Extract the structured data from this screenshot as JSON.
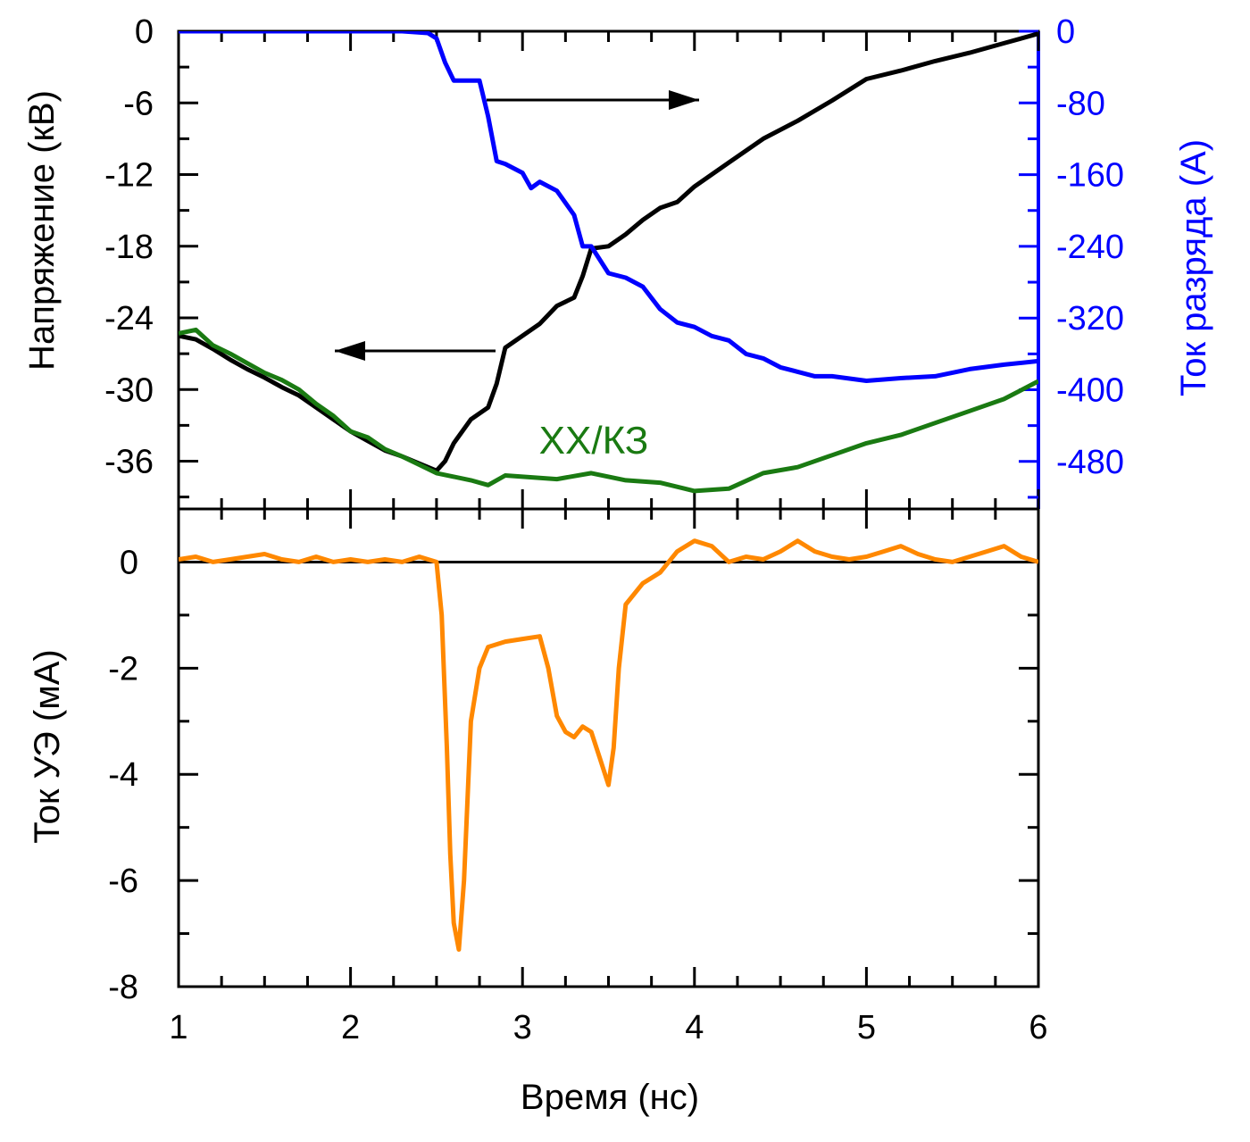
{
  "chart_data": [
    {
      "panel": "top",
      "type": "line",
      "xlabel": "",
      "xlim": [
        1,
        6
      ],
      "ylabel": "Напряжение (кВ)",
      "ylim": [
        -40,
        0
      ],
      "yticks": [
        0,
        -6,
        -12,
        -18,
        -24,
        -30,
        -36
      ],
      "ylabel_right": "Ток разряда (А)",
      "ylim_right": [
        -533,
        0
      ],
      "yticks_right": [
        0,
        -80,
        -160,
        -240,
        -320,
        -400,
        -480
      ],
      "annotation": "ХХ/КЗ",
      "colors": {
        "voltage": "#000000",
        "idle": "#1a7a12",
        "current": "#0000ff",
        "right_axis": "#0000ff"
      },
      "series": [
        {
          "axis": "left",
          "color": "#000000",
          "x": [
            1.0,
            1.1,
            1.2,
            1.3,
            1.4,
            1.5,
            1.6,
            1.7,
            1.8,
            1.9,
            2.0,
            2.1,
            2.2,
            2.3,
            2.4,
            2.5,
            2.55,
            2.6,
            2.7,
            2.8,
            2.85,
            2.9,
            3.0,
            3.1,
            3.2,
            3.3,
            3.35,
            3.4,
            3.5,
            3.6,
            3.7,
            3.8,
            3.9,
            4.0,
            4.2,
            4.4,
            4.6,
            4.8,
            5.0,
            5.2,
            5.4,
            5.6,
            5.8,
            6.0
          ],
          "y": [
            -25.5,
            -25.8,
            -26.6,
            -27.5,
            -28.3,
            -29.0,
            -29.8,
            -30.5,
            -31.5,
            -32.5,
            -33.5,
            -34.3,
            -35.1,
            -35.6,
            -36.2,
            -36.8,
            -36.0,
            -34.5,
            -32.5,
            -31.5,
            -29.5,
            -26.5,
            -25.5,
            -24.5,
            -23.0,
            -22.3,
            -20.5,
            -18.2,
            -18.0,
            -17.0,
            -15.8,
            -14.8,
            -14.3,
            -13.0,
            -11.0,
            -9.0,
            -7.5,
            -5.8,
            -4.0,
            -3.3,
            -2.5,
            -1.8,
            -1.0,
            -0.2
          ]
        },
        {
          "axis": "left",
          "color": "#1a7a12",
          "x": [
            1.0,
            1.1,
            1.2,
            1.3,
            1.4,
            1.5,
            1.6,
            1.7,
            1.8,
            1.9,
            2.0,
            2.1,
            2.2,
            2.3,
            2.4,
            2.5,
            2.6,
            2.7,
            2.8,
            2.9,
            3.0,
            3.2,
            3.4,
            3.6,
            3.8,
            4.0,
            4.2,
            4.4,
            4.6,
            4.8,
            5.0,
            5.2,
            5.4,
            5.6,
            5.8,
            6.0
          ],
          "y": [
            -25.3,
            -25.0,
            -26.3,
            -27.0,
            -27.8,
            -28.6,
            -29.2,
            -30.0,
            -31.2,
            -32.2,
            -33.5,
            -34.0,
            -35.0,
            -35.6,
            -36.3,
            -37.0,
            -37.3,
            -37.6,
            -38.0,
            -37.2,
            -37.3,
            -37.5,
            -37.0,
            -37.6,
            -37.8,
            -38.5,
            -38.3,
            -37.0,
            -36.5,
            -35.5,
            -34.5,
            -33.8,
            -32.8,
            -31.8,
            -30.8,
            -29.3
          ]
        },
        {
          "axis": "right",
          "color": "#0000ff",
          "x": [
            1.0,
            1.5,
            2.0,
            2.3,
            2.45,
            2.5,
            2.55,
            2.6,
            2.7,
            2.75,
            2.8,
            2.85,
            2.9,
            3.0,
            3.05,
            3.1,
            3.2,
            3.3,
            3.35,
            3.4,
            3.5,
            3.6,
            3.7,
            3.8,
            3.9,
            4.0,
            4.1,
            4.2,
            4.3,
            4.4,
            4.5,
            4.6,
            4.7,
            4.8,
            5.0,
            5.2,
            5.4,
            5.6,
            5.8,
            6.0
          ],
          "y": [
            0,
            0,
            0,
            0,
            -2,
            -8,
            -35,
            -55,
            -55,
            -55,
            -95,
            -145,
            -148,
            -158,
            -175,
            -168,
            -178,
            -205,
            -240,
            -240,
            -270,
            -275,
            -285,
            -310,
            -325,
            -330,
            -340,
            -345,
            -360,
            -365,
            -375,
            -380,
            -385,
            -385,
            -390,
            -387,
            -385,
            -377,
            -372,
            -368
          ]
        }
      ]
    },
    {
      "panel": "bottom",
      "type": "line",
      "xlabel": "Время (нс)",
      "xlim": [
        1,
        6
      ],
      "xticks": [
        "1",
        "2",
        "3",
        "4",
        "5",
        "6"
      ],
      "ylabel": "Ток УЭ (мА)",
      "ylim": [
        -8,
        1
      ],
      "yticks": [
        "0",
        "-2",
        "-4",
        "-6",
        "-8"
      ],
      "colors": {
        "series": "#ff8800",
        "zero_line": "#000000"
      },
      "series": [
        {
          "color": "#ff8800",
          "x": [
            1.0,
            1.1,
            1.2,
            1.3,
            1.4,
            1.5,
            1.6,
            1.7,
            1.8,
            1.9,
            2.0,
            2.1,
            2.2,
            2.3,
            2.4,
            2.5,
            2.53,
            2.56,
            2.58,
            2.6,
            2.63,
            2.66,
            2.7,
            2.75,
            2.8,
            2.9,
            3.0,
            3.1,
            3.15,
            3.2,
            3.25,
            3.3,
            3.35,
            3.4,
            3.45,
            3.5,
            3.53,
            3.56,
            3.6,
            3.7,
            3.8,
            3.9,
            4.0,
            4.1,
            4.2,
            4.3,
            4.4,
            4.5,
            4.6,
            4.7,
            4.8,
            4.9,
            5.0,
            5.1,
            5.2,
            5.3,
            5.4,
            5.5,
            5.6,
            5.7,
            5.8,
            5.9,
            6.0
          ],
          "y": [
            0.05,
            0.1,
            0.0,
            0.05,
            0.1,
            0.15,
            0.05,
            0.0,
            0.1,
            0.0,
            0.05,
            0.0,
            0.05,
            0.0,
            0.1,
            0.0,
            -1.0,
            -3.5,
            -5.5,
            -6.8,
            -7.3,
            -6.0,
            -3.0,
            -2.0,
            -1.6,
            -1.5,
            -1.45,
            -1.4,
            -2.0,
            -2.9,
            -3.2,
            -3.3,
            -3.1,
            -3.2,
            -3.7,
            -4.2,
            -3.5,
            -2.0,
            -0.8,
            -0.4,
            -0.2,
            0.2,
            0.4,
            0.3,
            0.0,
            0.1,
            0.05,
            0.2,
            0.4,
            0.2,
            0.1,
            0.05,
            0.1,
            0.2,
            0.3,
            0.15,
            0.05,
            0.0,
            0.1,
            0.2,
            0.3,
            0.1,
            0.0
          ]
        }
      ]
    }
  ]
}
